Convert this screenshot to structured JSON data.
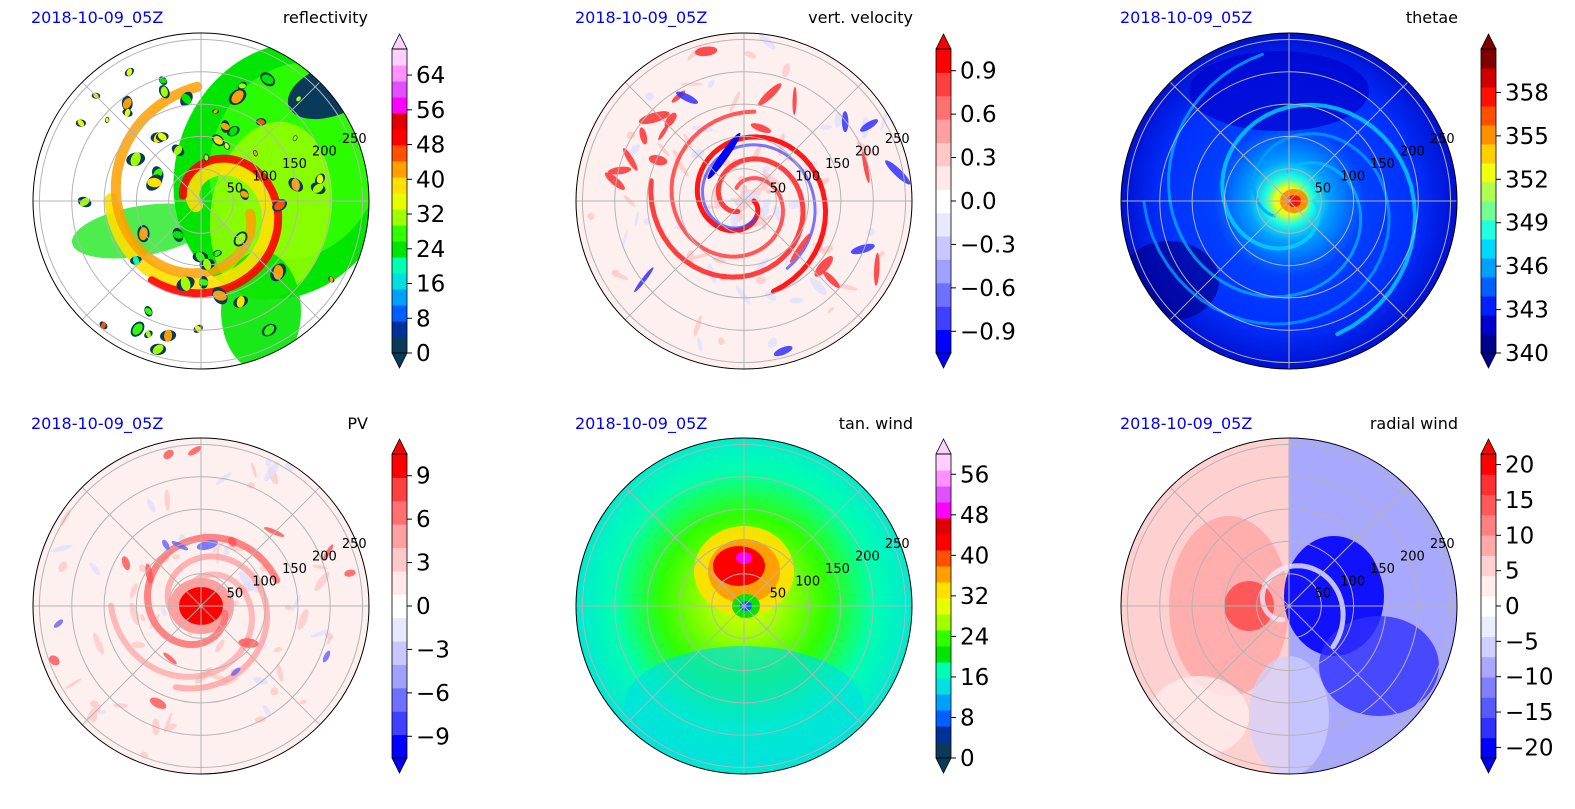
{
  "figure": {
    "date_color": "#0000ff"
  },
  "chart_data": [
    {
      "type": "heatmap",
      "id": "reflectivity",
      "date_label": "2018-10-09_05Z",
      "title": "reflectivity",
      "colorbar": {
        "ticks": [
          "0",
          "8",
          "16",
          "24",
          "32",
          "40",
          "48",
          "56",
          "64"
        ],
        "range": [
          0,
          70
        ],
        "tick_values": [
          0,
          8,
          16,
          24,
          32,
          40,
          48,
          56,
          64
        ],
        "extend": "both",
        "colors": [
          "#0a3a5a",
          "#00309a",
          "#0060ff",
          "#00a0ff",
          "#00e0e0",
          "#00ffb0",
          "#00e600",
          "#30ff00",
          "#a0ff00",
          "#e6ff00",
          "#ffe000",
          "#ffa000",
          "#ff5000",
          "#ff0000",
          "#e00000",
          "#ff00ff",
          "#e050ff",
          "#ff90ff",
          "#ffd0ff"
        ]
      },
      "ring_labels": [
        "50",
        "100",
        "150",
        "200",
        "250"
      ],
      "ring_radii": [
        50,
        100,
        150,
        200,
        250
      ],
      "max_radius": 260
    },
    {
      "type": "heatmap",
      "id": "vertical-velocity",
      "date_label": "2018-10-09_05Z",
      "title": "vert. velocity",
      "colorbar": {
        "ticks": [
          "0.9",
          "0.6",
          "0.3",
          "0.0",
          "−0.3",
          "−0.6",
          "−0.9"
        ],
        "tick_values": [
          0.9,
          0.6,
          0.3,
          0.0,
          -0.3,
          -0.6,
          -0.9
        ],
        "range": [
          -1.05,
          1.05
        ],
        "extend": "both",
        "colors": [
          "#0000ff",
          "#4040ff",
          "#7070ff",
          "#a0a0ff",
          "#c8c8ff",
          "#e8e8ff",
          "#ffffff",
          "#ffe8e8",
          "#ffc8c8",
          "#ffa0a0",
          "#ff7070",
          "#ff4040",
          "#ff0000"
        ]
      },
      "ring_labels": [
        "50",
        "100",
        "150",
        "200",
        "250"
      ],
      "ring_radii": [
        50,
        100,
        150,
        200,
        250
      ],
      "max_radius": 260
    },
    {
      "type": "heatmap",
      "id": "theta-e",
      "date_label": "2018-10-09_05Z",
      "title": "thetae",
      "colorbar": {
        "ticks": [
          "340",
          "343",
          "346",
          "349",
          "352",
          "355",
          "358"
        ],
        "tick_values": [
          340,
          343,
          346,
          349,
          352,
          355,
          358
        ],
        "range": [
          340,
          361
        ],
        "extend": "both",
        "colors": [
          "#00008f",
          "#0000cc",
          "#0020ff",
          "#0060ff",
          "#00a0ff",
          "#00d8ff",
          "#20ffdf",
          "#70ff90",
          "#b0ff50",
          "#f0ff10",
          "#ffd000",
          "#ff9000",
          "#ff5000",
          "#ff1000",
          "#d00000",
          "#800000"
        ]
      },
      "ring_labels": [
        "50",
        "100",
        "150",
        "200",
        "250"
      ],
      "ring_radii": [
        50,
        100,
        150,
        200,
        250
      ],
      "max_radius": 260
    },
    {
      "type": "heatmap",
      "id": "potential-vorticity",
      "date_label": "2018-10-09_05Z",
      "title": "PV",
      "colorbar": {
        "ticks": [
          "9",
          "6",
          "3",
          "0",
          "−3",
          "−6",
          "−9"
        ],
        "tick_values": [
          9,
          6,
          3,
          0,
          -3,
          -6,
          -9
        ],
        "range": [
          -10.5,
          10.5
        ],
        "extend": "both",
        "colors": [
          "#0000ff",
          "#4040ff",
          "#7070ff",
          "#a0a0ff",
          "#c8c8ff",
          "#e8e8ff",
          "#ffffff",
          "#ffe8e8",
          "#ffc8c8",
          "#ffa0a0",
          "#ff7070",
          "#ff4040",
          "#ff0000"
        ]
      },
      "ring_labels": [
        "50",
        "100",
        "150",
        "200",
        "250"
      ],
      "ring_radii": [
        50,
        100,
        150,
        200,
        250
      ],
      "max_radius": 260
    },
    {
      "type": "heatmap",
      "id": "tangential-wind",
      "date_label": "2018-10-09_05Z",
      "title": "tan. wind",
      "colorbar": {
        "ticks": [
          "0",
          "8",
          "16",
          "24",
          "32",
          "40",
          "48",
          "56"
        ],
        "tick_values": [
          0,
          8,
          16,
          24,
          32,
          40,
          48,
          56
        ],
        "range": [
          0,
          60
        ],
        "extend": "both",
        "colors": [
          "#0a3a5a",
          "#00309a",
          "#0060ff",
          "#00a0ff",
          "#00e0e0",
          "#00ffb0",
          "#00e600",
          "#30ff00",
          "#a0ff00",
          "#e6ff00",
          "#ffe000",
          "#ffa000",
          "#ff5000",
          "#ff0000",
          "#e00000",
          "#ff00ff",
          "#e050ff",
          "#ff90ff",
          "#ffd0ff"
        ]
      },
      "ring_labels": [
        "50",
        "100",
        "150",
        "200",
        "250"
      ],
      "ring_radii": [
        50,
        100,
        150,
        200,
        250
      ],
      "max_radius": 260
    },
    {
      "type": "heatmap",
      "id": "radial-wind",
      "date_label": "2018-10-09_05Z",
      "title": "radial wind",
      "colorbar": {
        "ticks": [
          "20",
          "15",
          "10",
          "5",
          "0",
          "−5",
          "−10",
          "−15",
          "−20"
        ],
        "tick_values": [
          20,
          15,
          10,
          5,
          0,
          -5,
          -10,
          -15,
          -20
        ],
        "range": [
          -21.5,
          21.5
        ],
        "extend": "both",
        "colors": [
          "#0000ff",
          "#3030ff",
          "#5858ff",
          "#8080ff",
          "#a8a8ff",
          "#d0d0ff",
          "#ececff",
          "#ffffff",
          "#ffecec",
          "#ffd0d0",
          "#ffa8a8",
          "#ff8080",
          "#ff5858",
          "#ff3030",
          "#ff0000"
        ]
      },
      "ring_labels": [
        "50",
        "100",
        "150",
        "200",
        "250"
      ],
      "ring_radii": [
        50,
        100,
        150,
        200,
        250
      ],
      "max_radius": 260
    }
  ]
}
